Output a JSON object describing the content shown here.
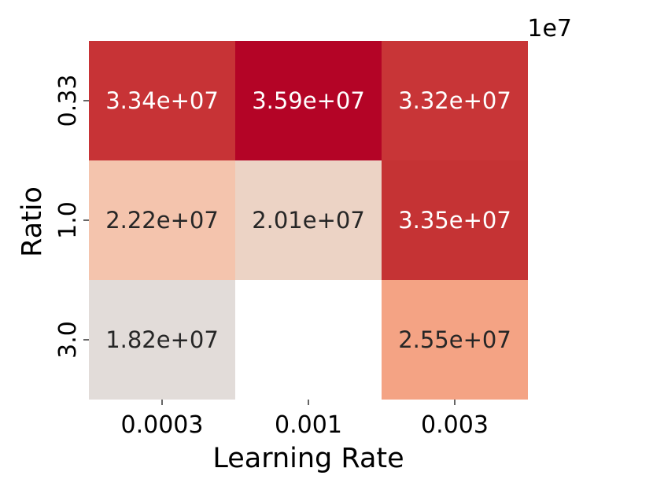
{
  "chart_data": {
    "type": "heatmap",
    "xlabel": "Learning Rate",
    "ylabel": "Ratio",
    "x_categories": [
      "0.0003",
      "0.001",
      "0.003"
    ],
    "y_categories": [
      "0.33",
      "1.0",
      "3.0"
    ],
    "values": [
      [
        33400000,
        35900000,
        33200000
      ],
      [
        22200000,
        20100000,
        33500000
      ],
      [
        18200000,
        null,
        25500000
      ]
    ],
    "annotations": [
      [
        "3.34e+07",
        "3.59e+07",
        "3.32e+07"
      ],
      [
        "2.22e+07",
        "2.01e+07",
        "3.35e+07"
      ],
      [
        "1.82e+07",
        "",
        "2.55e+07"
      ]
    ],
    "colorbar_offset_label": "1e7",
    "colormap": "coolwarm",
    "cell_colors": [
      [
        "#c73336",
        "#b40426",
        "#c83537"
      ],
      [
        "#f4c4ad",
        "#ecd3c5",
        "#c53334"
      ],
      [
        "#e2dcd9",
        null,
        "#f4a384"
      ]
    ]
  }
}
